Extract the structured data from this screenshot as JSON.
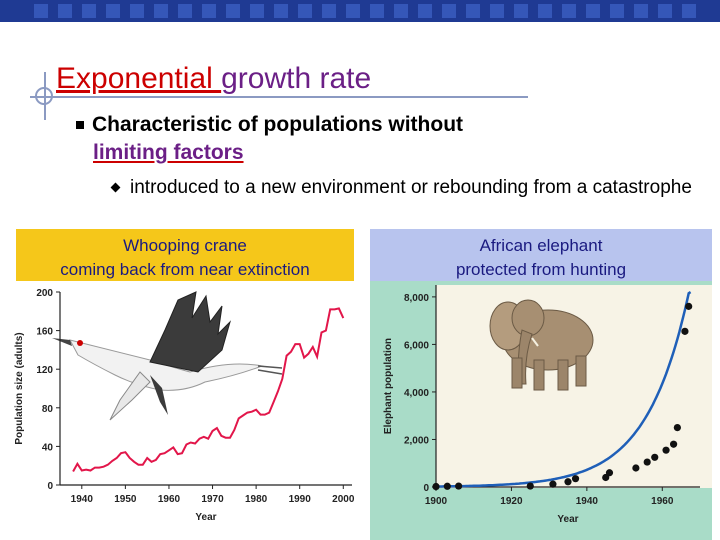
{
  "title": {
    "accent": "Exponential ",
    "rest": "growth rate"
  },
  "bullet1": {
    "line1": "Characteristic of populations without",
    "line2": "limiting factors"
  },
  "bullet2": {
    "text": "introduced to a new environment or rebounding from a catastrophe"
  },
  "left_caption": {
    "line1": "Whooping crane",
    "line2": "coming back from near extinction"
  },
  "right_caption": {
    "line1": "African elephant",
    "line2": "protected from hunting"
  },
  "colors": {
    "title_purple": "#6b1f86",
    "accent_red": "#cc0000",
    "crane_line": "#e2164a",
    "elephant_line": "#1f5fb8",
    "left_caption_bg": "#f5c71a",
    "right_caption_bg": "#b8c4ee"
  },
  "icons": {
    "left_illustration": "whooping-crane-illustration",
    "right_illustration": "elephant-illustration"
  },
  "chart_data": [
    {
      "type": "line",
      "xlabel": "Year",
      "ylabel": "Population size (adults)",
      "xlim": [
        1935,
        2002
      ],
      "ylim": [
        0,
        200
      ],
      "xticks": [
        "1940",
        "1950",
        "1960",
        "1970",
        "1980",
        "1990",
        "2000"
      ],
      "yticks": [
        "0",
        "40",
        "80",
        "120",
        "160",
        "200"
      ],
      "x": [
        1938,
        1939,
        1940,
        1941,
        1942,
        1943,
        1944,
        1945,
        1946,
        1947,
        1948,
        1949,
        1950,
        1951,
        1952,
        1953,
        1954,
        1955,
        1956,
        1957,
        1958,
        1959,
        1960,
        1961,
        1962,
        1963,
        1964,
        1965,
        1966,
        1967,
        1968,
        1969,
        1970,
        1971,
        1972,
        1973,
        1974,
        1975,
        1976,
        1977,
        1978,
        1979,
        1980,
        1981,
        1982,
        1983,
        1984,
        1985,
        1986,
        1987,
        1988,
        1989,
        1990,
        1991,
        1992,
        1993,
        1994,
        1995,
        1996,
        1997,
        1998,
        1999,
        2000
      ],
      "y": [
        14,
        22,
        15,
        16,
        15,
        18,
        18,
        19,
        21,
        25,
        28,
        33,
        34,
        28,
        24,
        21,
        21,
        28,
        24,
        26,
        32,
        33,
        36,
        39,
        32,
        33,
        42,
        44,
        43,
        48,
        50,
        48,
        56,
        59,
        51,
        49,
        49,
        57,
        69,
        72,
        75,
        76,
        78,
        73,
        73,
        75,
        86,
        97,
        110,
        134,
        138,
        146,
        146,
        132,
        136,
        143,
        133,
        158,
        160,
        182,
        182,
        183,
        173
      ]
    },
    {
      "type": "scatter",
      "xlabel": "Year",
      "ylabel": "Elephant population",
      "xlim": [
        1900,
        1970
      ],
      "ylim": [
        0,
        8500
      ],
      "xticks": [
        "1900",
        "1920",
        "1940",
        "1960"
      ],
      "yticks": [
        "0",
        "2,000",
        "4,000",
        "6,000",
        "8,000"
      ],
      "x": [
        1900,
        1903,
        1906,
        1925,
        1931,
        1935,
        1937,
        1945,
        1946,
        1953,
        1956,
        1958,
        1961,
        1963,
        1964,
        1966,
        1967
      ],
      "y": [
        20,
        30,
        40,
        40,
        120,
        220,
        350,
        400,
        600,
        800,
        1050,
        1250,
        1550,
        1800,
        2500,
        6550,
        7600
      ]
    }
  ]
}
